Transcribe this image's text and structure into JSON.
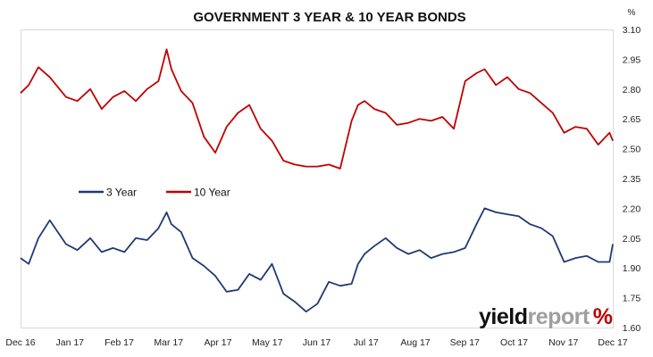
{
  "chart_data": {
    "type": "line",
    "title": "GOVERNMENT 3 YEAR & 10 YEAR BONDS",
    "ylabel": "%",
    "ylim": [
      1.6,
      3.1
    ],
    "yticks": [
      "1.60",
      "1.75",
      "1.90",
      "2.05",
      "2.20",
      "2.35",
      "2.50",
      "2.65",
      "2.80",
      "2.95",
      "3.10"
    ],
    "ytick_values": [
      1.6,
      1.75,
      1.9,
      2.05,
      2.2,
      2.35,
      2.5,
      2.65,
      2.8,
      2.95,
      3.1
    ],
    "xticks": [
      "Dec 16",
      "Jan 17",
      "Feb 17",
      "Mar 17",
      "Apr 17",
      "May 17",
      "Jun 17",
      "Jul 17",
      "Aug 17",
      "Sep 17",
      "Oct 17",
      "Nov 17",
      "Dec 17"
    ],
    "grid": false,
    "legend_position": "middle-left",
    "x_dates": [
      "2016-12-01",
      "2016-12-06",
      "2016-12-12",
      "2016-12-19",
      "2016-12-29",
      "2017-01-05",
      "2017-01-13",
      "2017-01-20",
      "2017-01-27",
      "2017-02-03",
      "2017-02-10",
      "2017-02-17",
      "2017-02-24",
      "2017-03-01",
      "2017-03-04",
      "2017-03-10",
      "2017-03-17",
      "2017-03-24",
      "2017-03-31",
      "2017-04-07",
      "2017-04-14",
      "2017-04-21",
      "2017-04-28",
      "2017-05-05",
      "2017-05-12",
      "2017-05-19",
      "2017-05-26",
      "2017-06-02",
      "2017-06-09",
      "2017-06-16",
      "2017-06-23",
      "2017-06-27",
      "2017-07-01",
      "2017-07-07",
      "2017-07-14",
      "2017-07-21",
      "2017-07-28",
      "2017-08-04",
      "2017-08-11",
      "2017-08-18",
      "2017-08-25",
      "2017-09-01",
      "2017-09-08",
      "2017-09-13",
      "2017-09-20",
      "2017-09-27",
      "2017-10-04",
      "2017-10-11",
      "2017-10-18",
      "2017-10-25",
      "2017-11-01",
      "2017-11-08",
      "2017-11-15",
      "2017-11-22",
      "2017-11-29",
      "2017-12-01"
    ],
    "series": [
      {
        "name": "3 Year",
        "color": "#1f3a73",
        "values": [
          1.95,
          1.92,
          2.05,
          2.14,
          2.02,
          1.99,
          2.05,
          1.98,
          2.0,
          1.98,
          2.05,
          2.04,
          2.1,
          2.18,
          2.12,
          2.08,
          1.95,
          1.91,
          1.86,
          1.78,
          1.79,
          1.87,
          1.84,
          1.92,
          1.77,
          1.73,
          1.68,
          1.72,
          1.83,
          1.81,
          1.82,
          1.92,
          1.97,
          2.01,
          2.05,
          2.0,
          1.97,
          1.99,
          1.95,
          1.97,
          1.98,
          2.0,
          2.12,
          2.2,
          2.18,
          2.17,
          2.16,
          2.12,
          2.1,
          2.06,
          1.93,
          1.95,
          1.96,
          1.93,
          1.93,
          2.02
        ]
      },
      {
        "name": "10 Year",
        "color": "#c00000",
        "values": [
          2.78,
          2.82,
          2.91,
          2.86,
          2.76,
          2.74,
          2.8,
          2.7,
          2.76,
          2.79,
          2.74,
          2.8,
          2.84,
          3.0,
          2.9,
          2.79,
          2.73,
          2.56,
          2.48,
          2.61,
          2.68,
          2.72,
          2.6,
          2.54,
          2.44,
          2.42,
          2.41,
          2.41,
          2.42,
          2.4,
          2.64,
          2.72,
          2.74,
          2.7,
          2.68,
          2.62,
          2.63,
          2.65,
          2.64,
          2.66,
          2.6,
          2.84,
          2.88,
          2.9,
          2.82,
          2.86,
          2.8,
          2.78,
          2.73,
          2.68,
          2.58,
          2.61,
          2.6,
          2.52,
          2.58,
          2.54
        ]
      }
    ]
  },
  "logo": {
    "word_dark": "yield",
    "word_light": "report",
    "symbol": "%",
    "dark_color": "#111111",
    "light_color": "#9e9e9e",
    "symbol_color": "#c00000"
  }
}
